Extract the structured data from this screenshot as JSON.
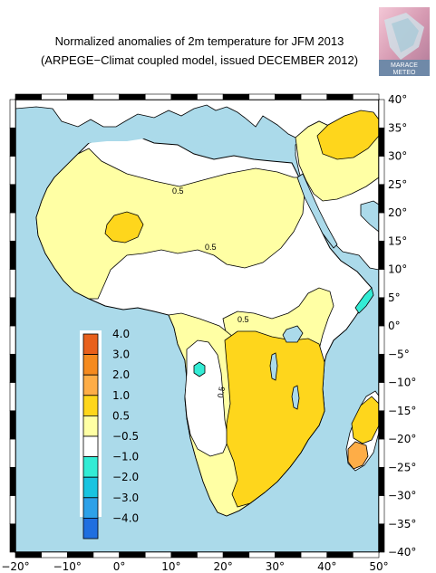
{
  "title": {
    "line1": "Normalized anomalies of 2m temperature for JFM 2013",
    "line2": "(ARPEGE−Climat coupled model, issued DECEMBER 2012)"
  },
  "logo": {
    "text_line1": "MARACE",
    "text_line2": "METEO"
  },
  "colors": {
    "ocean": "#abdaea",
    "land_neutral": "#ffffff",
    "anom_0_5_1_0": "#ffffa4",
    "anom_1_0_2_0": "#fed61c",
    "anom_2_0_3_0": "#fead47",
    "anom_3_0_4_0": "#f58a1f",
    "anom_4_0": "#e8601c",
    "anom_neg_0_5_1_0": "#33ecd5",
    "anom_neg_1_0_2_0": "#19c4e0",
    "anom_neg_2_0_3_0": "#2ea1e8",
    "anom_neg_3_0_4_0": "#1e6fe0"
  },
  "axes": {
    "x_ticks": [
      "−20°",
      "−10°",
      "0°",
      "10°",
      "20°",
      "30°",
      "40°",
      "50°"
    ],
    "y_ticks": [
      "40°",
      "35°",
      "30°",
      "25°",
      "20°",
      "15°",
      "10°",
      "5°",
      "0°",
      "−5°",
      "−10°",
      "−15°",
      "−20°",
      "−25°",
      "−30°",
      "−35°",
      "−40°"
    ],
    "lon_range": [
      -20,
      50
    ],
    "lat_range": [
      -40,
      40
    ]
  },
  "colorbar": {
    "labels": [
      "4.0",
      "3.0",
      "2.0",
      "1.0",
      "0.5",
      "−0.5",
      "−1.0",
      "−2.0",
      "−3.0",
      "−4.0"
    ],
    "colors": [
      "#e8601c",
      "#f58a1f",
      "#fead47",
      "#fed61c",
      "#ffffa4",
      "#ffffff",
      "#33ecd5",
      "#19c4e0",
      "#2ea1e8",
      "#1e6fe0"
    ]
  },
  "contour_labels": [
    "0.5",
    "0.5",
    "0.5",
    "0.5"
  ]
}
